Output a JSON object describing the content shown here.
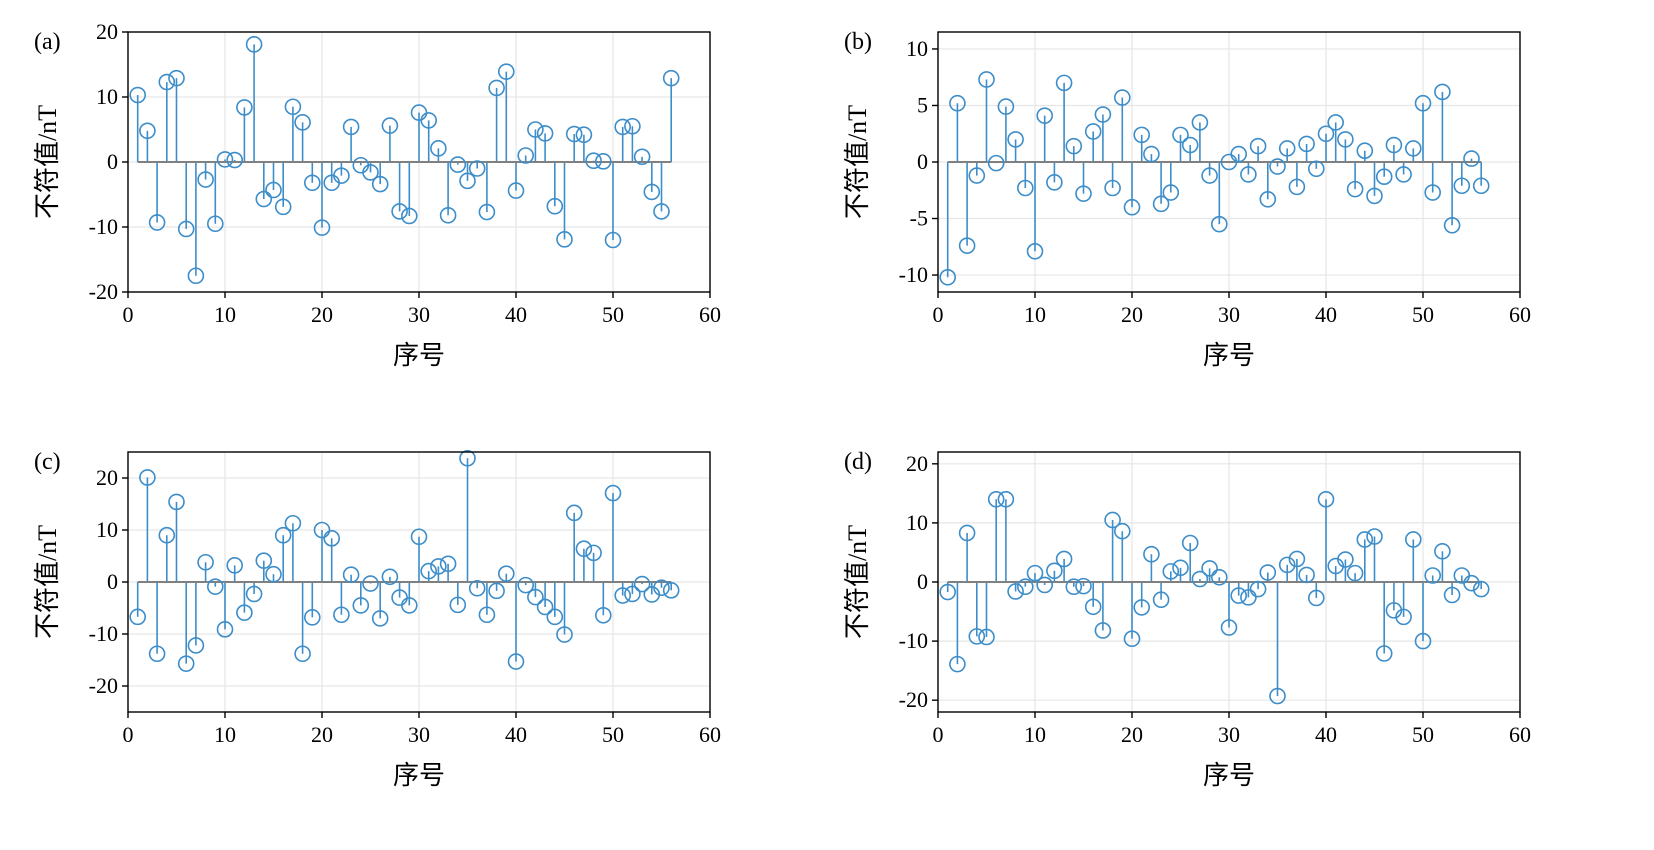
{
  "colors": {
    "stem": "#3c8dc9",
    "baseline": "#808080",
    "grid": "#e6e6e6"
  },
  "chart_data": [
    {
      "type": "stem",
      "panel_label": "(a)",
      "xlabel": "序号",
      "ylabel": "不符值/nT",
      "xlim": [
        0,
        60
      ],
      "ylim": [
        -20,
        20
      ],
      "xticks": [
        0,
        10,
        20,
        30,
        40,
        50,
        60
      ],
      "yticks": [
        -20,
        -10,
        0,
        10,
        20
      ],
      "grid": true,
      "x": [
        1,
        2,
        3,
        4,
        5,
        6,
        7,
        8,
        9,
        10,
        11,
        12,
        13,
        14,
        15,
        16,
        17,
        18,
        19,
        20,
        21,
        22,
        23,
        24,
        25,
        26,
        27,
        28,
        29,
        30,
        31,
        32,
        33,
        34,
        35,
        36,
        37,
        38,
        39,
        40,
        41,
        42,
        43,
        44,
        45,
        46,
        47,
        48,
        49,
        50,
        51,
        52,
        53,
        54,
        55,
        56
      ],
      "values": [
        10.3,
        4.8,
        -9.3,
        12.3,
        12.9,
        -10.3,
        -17.5,
        -2.7,
        -9.5,
        0.4,
        0.3,
        8.4,
        18.1,
        -5.7,
        -4.3,
        -6.9,
        8.5,
        6.1,
        -3.2,
        -10.1,
        -3.2,
        -2.1,
        5.4,
        -0.5,
        -1.6,
        -3.4,
        5.6,
        -7.6,
        -8.3,
        7.6,
        6.4,
        2.1,
        -8.2,
        -0.4,
        -2.9,
        -1,
        -7.7,
        11.4,
        13.9,
        -4.4,
        1,
        5,
        4.4,
        -6.8,
        -11.9,
        4.3,
        4.2,
        0.2,
        0.1,
        -12,
        5.4,
        5.5,
        0.8,
        -4.6,
        -7.6,
        12.9
      ]
    },
    {
      "type": "stem",
      "panel_label": "(b)",
      "xlabel": "序号",
      "ylabel": "不符值/nT",
      "xlim": [
        0,
        60
      ],
      "ylim": [
        -11.5,
        11.5
      ],
      "xticks": [
        0,
        10,
        20,
        30,
        40,
        50,
        60
      ],
      "yticks": [
        -10,
        -5,
        0,
        5,
        10
      ],
      "grid": true,
      "x": [
        1,
        2,
        3,
        4,
        5,
        6,
        7,
        8,
        9,
        10,
        11,
        12,
        13,
        14,
        15,
        16,
        17,
        18,
        19,
        20,
        21,
        22,
        23,
        24,
        25,
        26,
        27,
        28,
        29,
        30,
        31,
        32,
        33,
        34,
        35,
        36,
        37,
        38,
        39,
        40,
        41,
        42,
        43,
        44,
        45,
        46,
        47,
        48,
        49,
        50,
        51,
        52,
        53,
        54,
        55,
        56
      ],
      "values": [
        -10.2,
        5.2,
        -7.4,
        -1.2,
        7.3,
        -0.1,
        4.9,
        2,
        -2.3,
        -7.9,
        4.1,
        -1.8,
        7,
        1.4,
        -2.8,
        2.7,
        4.2,
        -2.3,
        5.7,
        -4,
        2.4,
        0.7,
        -3.7,
        -2.7,
        2.4,
        1.5,
        3.5,
        -1.2,
        -5.5,
        0,
        0.7,
        -1.1,
        1.4,
        -3.3,
        -0.4,
        1.2,
        -2.2,
        1.6,
        -0.6,
        2.5,
        3.5,
        2,
        -2.4,
        1,
        -3,
        -1.3,
        1.5,
        -1.1,
        1.2,
        5.2,
        -2.7,
        6.2,
        -5.6,
        -2.1,
        0.3,
        -2.1
      ]
    },
    {
      "type": "stem",
      "panel_label": "(c)",
      "xlabel": "序号",
      "ylabel": "不符值/nT",
      "xlim": [
        0,
        60
      ],
      "ylim": [
        -25,
        25
      ],
      "xticks": [
        0,
        10,
        20,
        30,
        40,
        50,
        60
      ],
      "yticks": [
        -20,
        -10,
        0,
        10,
        20
      ],
      "grid": true,
      "x": [
        1,
        2,
        3,
        4,
        5,
        6,
        7,
        8,
        9,
        10,
        11,
        12,
        13,
        14,
        15,
        16,
        17,
        18,
        19,
        20,
        21,
        22,
        23,
        24,
        25,
        26,
        27,
        28,
        29,
        30,
        31,
        32,
        33,
        34,
        35,
        36,
        37,
        38,
        39,
        40,
        41,
        42,
        43,
        44,
        45,
        46,
        47,
        48,
        49,
        50,
        51,
        52,
        53,
        54,
        55,
        56
      ],
      "values": [
        -6.7,
        20.1,
        -13.8,
        9,
        15.4,
        -15.7,
        -12.2,
        3.8,
        -0.9,
        -9.1,
        3.2,
        -5.9,
        -2.3,
        4.1,
        1.5,
        9,
        11.3,
        -13.8,
        -6.8,
        10,
        8.4,
        -6.3,
        1.4,
        -4.5,
        -0.3,
        -7,
        1,
        -3,
        -4.5,
        8.7,
        2.1,
        3,
        3.5,
        -4.4,
        23.8,
        -1.2,
        -6.3,
        -1.7,
        1.6,
        -15.3,
        -0.6,
        -2.9,
        -4.8,
        -6.7,
        -10.1,
        13.3,
        6.4,
        5.6,
        -6.4,
        17.1,
        -2.6,
        -2.3,
        -0.4,
        -2.4,
        -1.1,
        -1.6
      ]
    },
    {
      "type": "stem",
      "panel_label": "(d)",
      "xlabel": "序号",
      "ylabel": "不符值/nT",
      "xlim": [
        0,
        60
      ],
      "ylim": [
        -22,
        22
      ],
      "xticks": [
        0,
        10,
        20,
        30,
        40,
        50,
        60
      ],
      "yticks": [
        -20,
        -10,
        0,
        10,
        20
      ],
      "grid": true,
      "x": [
        1,
        2,
        3,
        4,
        5,
        6,
        7,
        8,
        9,
        10,
        11,
        12,
        13,
        14,
        15,
        16,
        17,
        18,
        19,
        20,
        21,
        22,
        23,
        24,
        25,
        26,
        27,
        28,
        29,
        30,
        31,
        32,
        33,
        34,
        35,
        36,
        37,
        38,
        39,
        40,
        41,
        42,
        43,
        44,
        45,
        46,
        47,
        48,
        49,
        50,
        51,
        52,
        53,
        54,
        55,
        56
      ],
      "values": [
        -1.7,
        -13.9,
        8.3,
        -9.2,
        -9.3,
        14,
        14,
        -1.6,
        -0.8,
        1.5,
        -0.5,
        1.9,
        3.9,
        -0.8,
        -0.7,
        -4.2,
        -8.2,
        10.5,
        8.6,
        -9.6,
        -4.3,
        4.7,
        -3,
        1.8,
        2.4,
        6.6,
        0.5,
        2.3,
        0.8,
        -7.7,
        -2.3,
        -2.6,
        -1.2,
        1.6,
        -19.3,
        2.9,
        3.9,
        1.2,
        -2.7,
        14,
        2.7,
        3.8,
        1.5,
        7.2,
        7.7,
        -12.1,
        -4.8,
        -5.9,
        7.2,
        -10,
        1.1,
        5.2,
        -2.2,
        1.1,
        -0.2,
        -1.2
      ]
    }
  ]
}
